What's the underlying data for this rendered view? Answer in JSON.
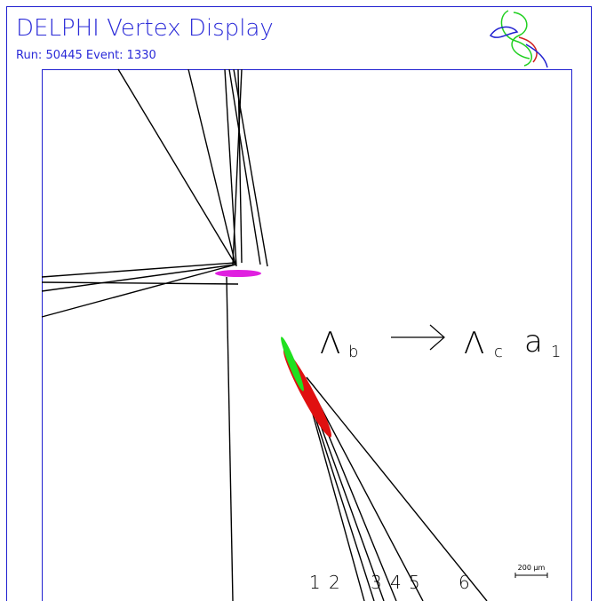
{
  "header": {
    "title": "DELPHI Vertex Display",
    "subtitle": "Run: 50445 Event: 1330"
  },
  "decay": {
    "parent": "Λ",
    "parent_sub": "b",
    "daughter": "Λ",
    "daughter_sub": "c",
    "partner": "a",
    "partner_sub": "1"
  },
  "tracks": [
    "1",
    "2",
    "3",
    "4",
    "5",
    "6"
  ],
  "scale": "200 μm"
}
